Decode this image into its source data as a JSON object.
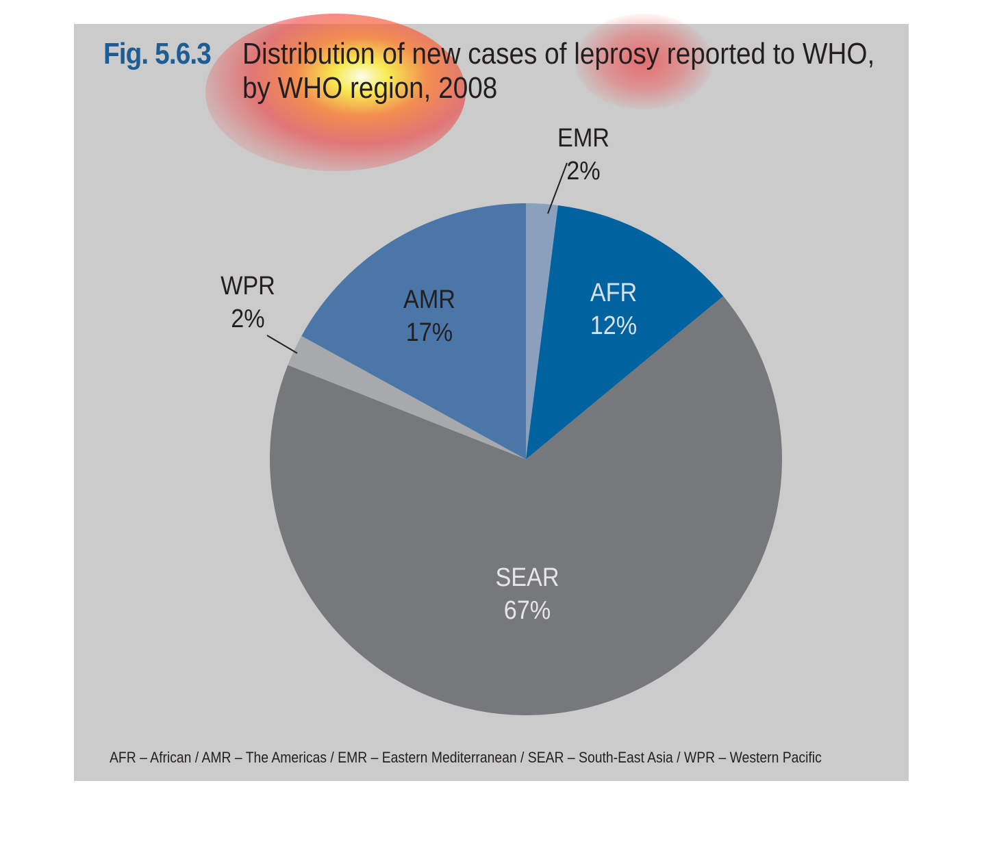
{
  "figure": {
    "number": "Fig. 5.6.3",
    "title_line1": "Distribution of new cases of leprosy reported to WHO,",
    "title_line2": "by WHO region, 2008",
    "footnote": "AFR – African / AMR – The Americas / EMR – Eastern Mediterranean / SEAR – South-East Asia / WPR – Western Pacific"
  },
  "colors": {
    "background": "#cbcbcb",
    "fig_number": "#1c5e93",
    "title_text": "#231f20"
  },
  "chart_data": {
    "type": "pie",
    "title": "Distribution of new cases of leprosy reported to WHO, by WHO region, 2008",
    "start_angle_deg": 0,
    "direction": "clockwise",
    "slices": [
      {
        "label": "EMR",
        "value": 2,
        "display": "2%",
        "color": "#8aa0bd",
        "label_color": "#231f20",
        "label_position": "outside"
      },
      {
        "label": "AFR",
        "value": 12,
        "display": "12%",
        "color": "#00629f",
        "label_color": "#d7e2ee",
        "label_position": "inside"
      },
      {
        "label": "SEAR",
        "value": 67,
        "display": "67%",
        "color": "#77787b",
        "label_color": "#e6e6e6",
        "label_position": "inside"
      },
      {
        "label": "WPR",
        "value": 2,
        "display": "2%",
        "color": "#a7a9ac",
        "label_color": "#231f20",
        "label_position": "outside"
      },
      {
        "label": "AMR",
        "value": 17,
        "display": "17%",
        "color": "#4a77a8",
        "label_color": "#231f20",
        "label_position": "inside"
      }
    ]
  }
}
